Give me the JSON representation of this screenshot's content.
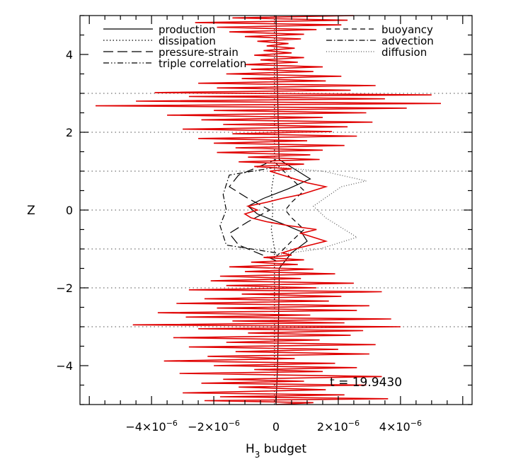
{
  "chart_data": {
    "type": "line",
    "title": "",
    "xlabel": "H",
    "xlabel_sub": "3",
    "xlabel_rest": " budget",
    "ylabel": "Z",
    "xlim": [
      -6.3e-06,
      6.3e-06
    ],
    "ylim": [
      -5.0,
      5.0
    ],
    "x_ticks": [
      {
        "value": -4e-06,
        "mant": "−4×10",
        "exp": "−6"
      },
      {
        "value": -2e-06,
        "mant": "−2×10",
        "exp": "−6"
      },
      {
        "value": 0,
        "mant": "0",
        "exp": ""
      },
      {
        "value": 2e-06,
        "mant": "2×10",
        "exp": "−6"
      },
      {
        "value": 4e-06,
        "mant": "4×10",
        "exp": "−6"
      }
    ],
    "y_ticks": [
      {
        "value": -4,
        "label": "−4"
      },
      {
        "value": -2,
        "label": "−2"
      },
      {
        "value": 0,
        "label": "0"
      },
      {
        "value": 2,
        "label": "2"
      },
      {
        "value": 4,
        "label": "4"
      }
    ],
    "gridlines_y": [
      -3,
      -2,
      -1,
      0,
      1,
      2,
      3
    ],
    "annotation": "t = 19.9430",
    "legend": [
      {
        "label": "production",
        "dash": "none"
      },
      {
        "label": "dissipation",
        "dash": "dotted"
      },
      {
        "label": "pressure-strain",
        "dash": "longdash"
      },
      {
        "label": "triple correlation",
        "dash": "dashdotdot"
      },
      {
        "label": "buoyancy",
        "dash": "dashed"
      },
      {
        "label": "advection",
        "dash": "dashdot"
      },
      {
        "label": "diffusion",
        "dash": "finedot"
      }
    ],
    "series": [
      {
        "name": "production",
        "color": "#000000",
        "points": [
          [
            0,
            -5
          ],
          [
            5e-08,
            -4
          ],
          [
            1e-07,
            -2
          ],
          [
            1e-07,
            -1.5
          ],
          [
            5e-07,
            -1.1
          ],
          [
            1e-06,
            -0.8
          ],
          [
            8e-07,
            -0.55
          ],
          [
            2e-07,
            -0.35
          ],
          [
            -6e-07,
            -0.1
          ],
          [
            -9e-07,
            0.1
          ],
          [
            -4e-07,
            0.3
          ],
          [
            4e-07,
            0.55
          ],
          [
            1.1e-06,
            0.8
          ],
          [
            6e-07,
            1.05
          ],
          [
            1e-07,
            1.3
          ],
          [
            5e-08,
            3
          ],
          [
            0,
            5
          ]
        ]
      },
      {
        "name": "dissipation",
        "color": "#000000",
        "points": [
          [
            -5e-08,
            -5
          ],
          [
            -5e-08,
            -1
          ],
          [
            -1.5e-07,
            -0.5
          ],
          [
            -1e-07,
            0
          ],
          [
            -1.5e-07,
            0.5
          ],
          [
            -5e-08,
            1
          ],
          [
            -5e-08,
            5
          ]
        ]
      },
      {
        "name": "pressure-strain",
        "color": "#000000",
        "points": [
          [
            0,
            -1.3
          ],
          [
            -1.2e-06,
            -0.9
          ],
          [
            -1.5e-06,
            -0.6
          ],
          [
            -9e-07,
            -0.3
          ],
          [
            -2e-07,
            0
          ],
          [
            -9e-07,
            0.3
          ],
          [
            -1.5e-06,
            0.6
          ],
          [
            -1.2e-06,
            0.9
          ],
          [
            0,
            1.3
          ]
        ]
      },
      {
        "name": "buoyancy",
        "color": "#000000",
        "points": [
          [
            0,
            -1.2
          ],
          [
            5e-07,
            -0.8
          ],
          [
            9e-07,
            -0.5
          ],
          [
            5e-07,
            -0.2
          ],
          [
            3e-07,
            0
          ],
          [
            5e-07,
            0.2
          ],
          [
            9e-07,
            0.5
          ],
          [
            5e-07,
            0.8
          ],
          [
            0,
            1.2
          ]
        ]
      },
      {
        "name": "advection",
        "color": "#000000",
        "points": [
          [
            0,
            -1.1
          ],
          [
            -1.6e-06,
            -0.9
          ],
          [
            -1.8e-06,
            -0.4
          ],
          [
            -1.6e-06,
            0
          ],
          [
            -1.7e-06,
            0.4
          ],
          [
            -1.5e-06,
            0.9
          ],
          [
            0,
            1.1
          ]
        ]
      },
      {
        "name": "diffusion",
        "color": "#555555",
        "points": [
          [
            0,
            -1.15
          ],
          [
            1.4e-06,
            -1.0
          ],
          [
            2.6e-06,
            -0.7
          ],
          [
            1.6e-06,
            -0.2
          ],
          [
            1.2e-06,
            0.1
          ],
          [
            2.1e-06,
            0.6
          ],
          [
            2.9e-06,
            0.75
          ],
          [
            1.5e-06,
            1.0
          ],
          [
            0,
            1.1
          ]
        ]
      }
    ],
    "total_budget": {
      "color": "#e00000",
      "points": [
        [
          0,
          -5
        ],
        [
          1.2e-06,
          -4.95
        ],
        [
          -2.3e-06,
          -4.9
        ],
        [
          3.6e-06,
          -4.85
        ],
        [
          -1.8e-06,
          -4.8
        ],
        [
          2.2e-06,
          -4.75
        ],
        [
          -3e-06,
          -4.7
        ],
        [
          1.6e-06,
          -4.62
        ],
        [
          -1.2e-06,
          -4.55
        ],
        [
          2.9e-06,
          -4.5
        ],
        [
          -2.4e-06,
          -4.45
        ],
        [
          9e-07,
          -4.4
        ],
        [
          -1.7e-06,
          -4.35
        ],
        [
          3.4e-06,
          -4.28
        ],
        [
          -3.1e-06,
          -4.2
        ],
        [
          1.5e-06,
          -4.15
        ],
        [
          -7e-07,
          -4.1
        ],
        [
          2.6e-06,
          -4.05
        ],
        [
          -2e-06,
          -4.0
        ],
        [
          1.9e-06,
          -3.94
        ],
        [
          -3.6e-06,
          -3.88
        ],
        [
          6e-07,
          -3.82
        ],
        [
          -2.2e-06,
          -3.76
        ],
        [
          3e-06,
          -3.7
        ],
        [
          -1.3e-06,
          -3.64
        ],
        [
          2e-06,
          -3.58
        ],
        [
          -2.8e-06,
          -3.52
        ],
        [
          3.2e-06,
          -3.46
        ],
        [
          -1.6e-06,
          -3.4
        ],
        [
          1.4e-06,
          -3.34
        ],
        [
          -3.3e-06,
          -3.28
        ],
        [
          2.4e-06,
          -3.22
        ],
        [
          -9e-07,
          -3.16
        ],
        [
          2.8e-06,
          -3.1
        ],
        [
          -2.5e-06,
          -3.05
        ],
        [
          4e-06,
          -3.0
        ],
        [
          -4.6e-06,
          -2.95
        ],
        [
          2.2e-06,
          -2.9
        ],
        [
          -1.4e-06,
          -2.85
        ],
        [
          3.7e-06,
          -2.8
        ],
        [
          -2.9e-06,
          -2.75
        ],
        [
          1.1e-06,
          -2.7
        ],
        [
          -3.8e-06,
          -2.64
        ],
        [
          2.6e-06,
          -2.58
        ],
        [
          -1.9e-06,
          -2.52
        ],
        [
          3e-06,
          -2.46
        ],
        [
          -3.2e-06,
          -2.4
        ],
        [
          1.7e-06,
          -2.34
        ],
        [
          -2.3e-06,
          -2.28
        ],
        [
          2.1e-06,
          -2.22
        ],
        [
          -1.1e-06,
          -2.16
        ],
        [
          3.4e-06,
          -2.1
        ],
        [
          -2.8e-06,
          -2.05
        ],
        [
          1.3e-06,
          -2.0
        ],
        [
          -1.6e-06,
          -1.94
        ],
        [
          2.5e-06,
          -1.88
        ],
        [
          -2.1e-06,
          -1.82
        ],
        [
          8e-07,
          -1.76
        ],
        [
          -1.8e-06,
          -1.7
        ],
        [
          1.9e-06,
          -1.64
        ],
        [
          -1e-06,
          -1.58
        ],
        [
          1.2e-06,
          -1.52
        ],
        [
          -1.5e-06,
          -1.46
        ],
        [
          7e-07,
          -1.4
        ],
        [
          -8e-07,
          -1.34
        ],
        [
          9e-07,
          -1.28
        ],
        [
          -4e-07,
          -1.22
        ],
        [
          5e-07,
          -1.16
        ],
        [
          2e-07,
          -1.1
        ],
        [
          6e-07,
          -1.0
        ],
        [
          1.1e-06,
          -0.9
        ],
        [
          1.6e-06,
          -0.8
        ],
        [
          1.2e-06,
          -0.7
        ],
        [
          8e-07,
          -0.6
        ],
        [
          1.3e-06,
          -0.5
        ],
        [
          4e-07,
          -0.4
        ],
        [
          -3e-07,
          -0.3
        ],
        [
          -8e-07,
          -0.2
        ],
        [
          -1e-06,
          -0.1
        ],
        [
          -6e-07,
          0
        ],
        [
          -9e-07,
          0.1
        ],
        [
          -3e-07,
          0.2
        ],
        [
          2e-07,
          0.3
        ],
        [
          8e-07,
          0.4
        ],
        [
          1.2e-06,
          0.5
        ],
        [
          1.6e-06,
          0.6
        ],
        [
          1e-06,
          0.7
        ],
        [
          6e-07,
          0.8
        ],
        [
          2e-07,
          0.9
        ],
        [
          -2e-07,
          1.0
        ],
        [
          5e-07,
          1.06
        ],
        [
          -7e-07,
          1.12
        ],
        [
          9e-07,
          1.18
        ],
        [
          -1.2e-06,
          1.24
        ],
        [
          1.4e-06,
          1.3
        ],
        [
          -9e-07,
          1.36
        ],
        [
          1.1e-06,
          1.42
        ],
        [
          -1.9e-06,
          1.48
        ],
        [
          1.5e-06,
          1.54
        ],
        [
          -1.3e-06,
          1.6
        ],
        [
          2.2e-06,
          1.66
        ],
        [
          -2e-06,
          1.72
        ],
        [
          1e-06,
          1.78
        ],
        [
          -2.5e-06,
          1.84
        ],
        [
          2.6e-06,
          1.9
        ],
        [
          -1.4e-06,
          1.96
        ],
        [
          1.8e-06,
          2.02
        ],
        [
          -3e-06,
          2.08
        ],
        [
          2.3e-06,
          2.14
        ],
        [
          -1.7e-06,
          2.2
        ],
        [
          3.1e-06,
          2.26
        ],
        [
          -2.4e-06,
          2.32
        ],
        [
          1.5e-06,
          2.38
        ],
        [
          -3.5e-06,
          2.44
        ],
        [
          2.9e-06,
          2.5
        ],
        [
          -2e-06,
          2.56
        ],
        [
          4.2e-06,
          2.62
        ],
        [
          -5.8e-06,
          2.68
        ],
        [
          5.3e-06,
          2.74
        ],
        [
          -4.5e-06,
          2.8
        ],
        [
          3.5e-06,
          2.86
        ],
        [
          -2.8e-06,
          2.92
        ],
        [
          5e-06,
          2.96
        ],
        [
          -3.9e-06,
          3.02
        ],
        [
          2.4e-06,
          3.08
        ],
        [
          -1.9e-06,
          3.14
        ],
        [
          3.2e-06,
          3.2
        ],
        [
          -2.5e-06,
          3.26
        ],
        [
          1.6e-06,
          3.32
        ],
        [
          -1.1e-06,
          3.38
        ],
        [
          2.1e-06,
          3.44
        ],
        [
          -1.6e-06,
          3.5
        ],
        [
          1.2e-06,
          3.56
        ],
        [
          -8e-07,
          3.62
        ],
        [
          1.5e-06,
          3.68
        ],
        [
          -1e-06,
          3.74
        ],
        [
          7e-07,
          3.8
        ],
        [
          -5e-07,
          3.86
        ],
        [
          9e-07,
          3.92
        ],
        [
          -7e-07,
          3.98
        ],
        [
          5e-07,
          4.04
        ],
        [
          -4e-07,
          4.1
        ],
        [
          6e-07,
          4.16
        ],
        [
          -3e-07,
          4.22
        ],
        [
          4e-07,
          4.28
        ],
        [
          -6e-07,
          4.34
        ],
        [
          8e-07,
          4.4
        ],
        [
          -1e-06,
          4.46
        ],
        [
          9e-07,
          4.52
        ],
        [
          -1.5e-06,
          4.58
        ],
        [
          1.3e-06,
          4.64
        ],
        [
          -1.9e-06,
          4.7
        ],
        [
          2.1e-06,
          4.76
        ],
        [
          -2.6e-06,
          4.82
        ],
        [
          2.3e-06,
          4.88
        ],
        [
          -1.4e-06,
          4.94
        ],
        [
          2.5e-06,
          5.0
        ]
      ]
    }
  }
}
